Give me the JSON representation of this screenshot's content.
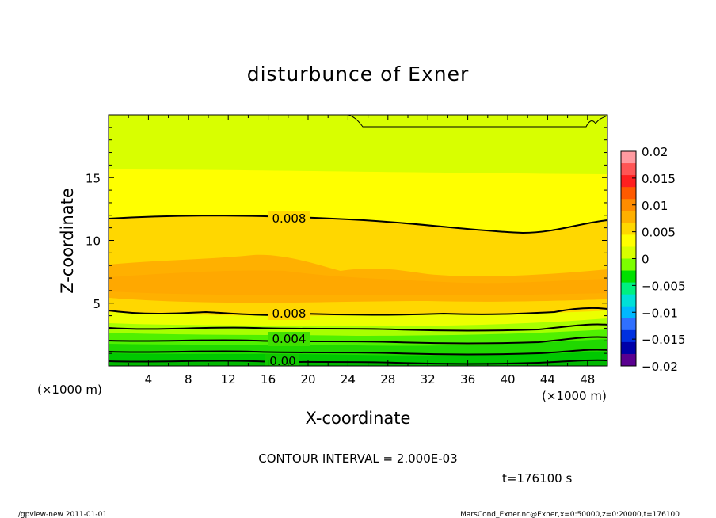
{
  "chart_data": {
    "type": "contour",
    "title": "disturbunce of Exner",
    "xlabel": "X-coordinate",
    "ylabel": "Z-coordinate",
    "x_unit": "(×1000 m)",
    "x_unit_right": "(×1000 m)",
    "xlim": [
      0,
      50
    ],
    "ylim": [
      0,
      20
    ],
    "x_ticks": [
      "4",
      "8",
      "12",
      "16",
      "20",
      "24",
      "28",
      "32",
      "36",
      "40",
      "44",
      "48"
    ],
    "y_ticks": [
      "5",
      "10",
      "15"
    ],
    "contour_interval_text": "CONTOUR INTERVAL = 2.000E-03",
    "time_text": "t=176100 s",
    "contour_labels": [
      "0.008",
      "0.008",
      "0.004",
      "0.00"
    ],
    "colorbar": {
      "ticks": [
        "0.02",
        "0.015",
        "0.01",
        "0.005",
        "0",
        "−0.005",
        "−0.01",
        "−0.015",
        "−0.02"
      ],
      "range": [
        -0.02,
        0.02
      ],
      "colors": [
        "#ff9aa0",
        "#ff5555",
        "#ff1f1f",
        "#ff5a00",
        "#ff8c00",
        "#ffb000",
        "#ffd700",
        "#ffff00",
        "#d8ff00",
        "#7cff00",
        "#00e000",
        "#00f080",
        "#00e0d8",
        "#00b8ff",
        "#3070ff",
        "#0030e0",
        "#0000a8",
        "#5a0090"
      ]
    },
    "layers": [
      {
        "level_min": 0.01,
        "z_range": [
          4.5,
          8.8
        ],
        "color": "#ffb300"
      },
      {
        "level_min": 0.008,
        "z_range": [
          8.8,
          12.0
        ],
        "color": "#ffd700"
      },
      {
        "level_min": 0.006,
        "z_range": [
          12.0,
          15.5
        ],
        "color": "#ffee00"
      },
      {
        "level_min": 0.004,
        "z_range": [
          15.5,
          20.0
        ],
        "color": "#d8ff00"
      }
    ]
  },
  "footer": {
    "left": "./gpview-new   2011-01-01",
    "right": "MarsCond_Exner.nc@Exner,x=0:50000,z=0:20000,t=176100"
  }
}
